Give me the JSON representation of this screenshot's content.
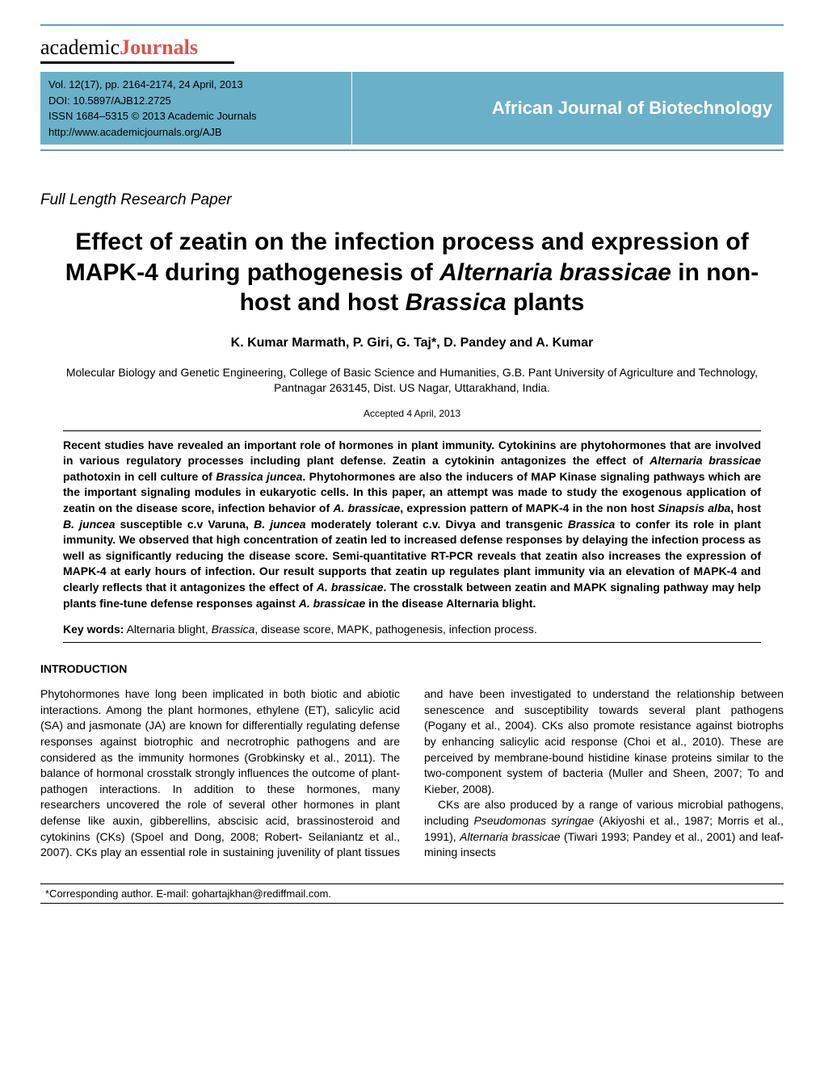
{
  "logo": {
    "part1": "academic",
    "part2": "Journals"
  },
  "header": {
    "vol_line": "Vol. 12(17), pp. 2164-2174, 24 April, 2013",
    "doi_line": "DOI: 10.5897/AJB12.2725",
    "issn_line": "ISSN 1684–5315 © 2013 Academic Journals",
    "url_line": "http://www.academicjournals.org/AJB",
    "journal_name": "African Journal of Biotechnology"
  },
  "paper_type": "Full Length Research Paper",
  "title": {
    "html": "Effect of zeatin on the infection process and expression of MAPK-4 during pathogenesis of <span class=\"italic\">Alternaria brassicae</span> in non-host and host <span class=\"italic\">Brassica</span> plants"
  },
  "authors": "K. Kumar Marmath, P. Giri, G. Taj*, D. Pandey and A. Kumar",
  "affiliation": "Molecular Biology and Genetic Engineering, College of Basic Science and Humanities, G.B. Pant University of Agriculture and Technology, Pantnagar 263145, Dist. US Nagar, Uttarakhand, India.",
  "accepted": "Accepted 4 April, 2013",
  "abstract": {
    "html": "Recent studies have revealed an important role of hormones in plant immunity. Cytokinins are phytohormones that are involved in various regulatory processes including plant defense. Zeatin a cytokinin antagonizes the effect of <span class=\"italic\">Alternaria brassicae</span> pathotoxin in cell culture of <span class=\"italic\">Brassica juncea</span>. Phytohormones are also the inducers of MAP Kinase signaling pathways which are the important signaling modules in eukaryotic cells. In this paper, an attempt was made to study the exogenous application of zeatin on the disease score, infection behavior of <span class=\"italic\">A. brassicae</span>, expression pattern of MAPK-4 in the non host <span class=\"italic\">Sinapsis alba</span>, host <span class=\"italic\">B. juncea</span> susceptible c.v Varuna, <span class=\"italic\">B. juncea</span> moderately tolerant c.v. Divya and transgenic <span class=\"italic\">Brassica</span> to confer its role in plant immunity. We observed that high concentration of zeatin led to increased defense responses by delaying the infection process as well as significantly reducing the disease score. Semi-quantitative RT-PCR reveals that zeatin also increases the expression of MAPK-4 at early hours of infection. Our result supports that zeatin up regulates plant immunity via an elevation of MAPK-4 and clearly reflects that it antagonizes the effect of <span class=\"italic\">A. brassicae</span>. The crosstalk between zeatin and MAPK signaling pathway may help plants fine-tune defense responses against <span class=\"italic\">A. brassicae</span> in the disease Alternaria blight."
  },
  "keywords": {
    "label": "Key words:",
    "html": " Alternaria blight, <span class=\"italic\">Brassica</span>, disease score, MAPK, pathogenesis, infection process."
  },
  "introduction": {
    "heading": "INTRODUCTION",
    "html": "Phytohormones have long been implicated in both biotic and abiotic interactions. Among the plant hormones, ethylene (ET), salicylic acid (SA) and jasmonate (JA) are known for differentially regulating defense responses against biotrophic and necrotrophic pathogens and are considered as the immunity hormones (Grobkinsky et al., 2011). The balance of hormonal crosstalk strongly influences the outcome of plant-pathogen interactions. In addition to these hormones, many researchers uncovered the role of several other hormones in plant defense like auxin, gibberellins, abscisic acid, brassinosteroid and cytokinins (CKs) (Spoel and Dong, 2008; Robert- Seilaniantz et al., 2007). CKs play an essential role in sustaining juvenility of plant tissues and have been investigated to understand the relationship between senescence and susceptibility towards several plant pathogens (Pogany et al., 2004). CKs also promote resistance against biotrophs by enhancing salicylic acid response (Choi et al., 2010). These are perceived by membrane-bound histidine kinase proteins similar to the two-component system of bacteria (Muller and Sheen, 2007; To and Kieber, 2008).<br>&nbsp;&nbsp;&nbsp;CKs are also produced by a range of various microbial pathogens, including <span class=\"italic\">Pseudomonas syringae</span> (Akiyoshi et al., 1987; Morris et al., 1991), <span class=\"italic\">Alternaria brassicae</span> (Tiwari 1993; Pandey et al., 2001) and leaf-mining insects"
  },
  "footer": "*Corresponding author. E-mail: gohartajkhan@rediffmail.com."
}
